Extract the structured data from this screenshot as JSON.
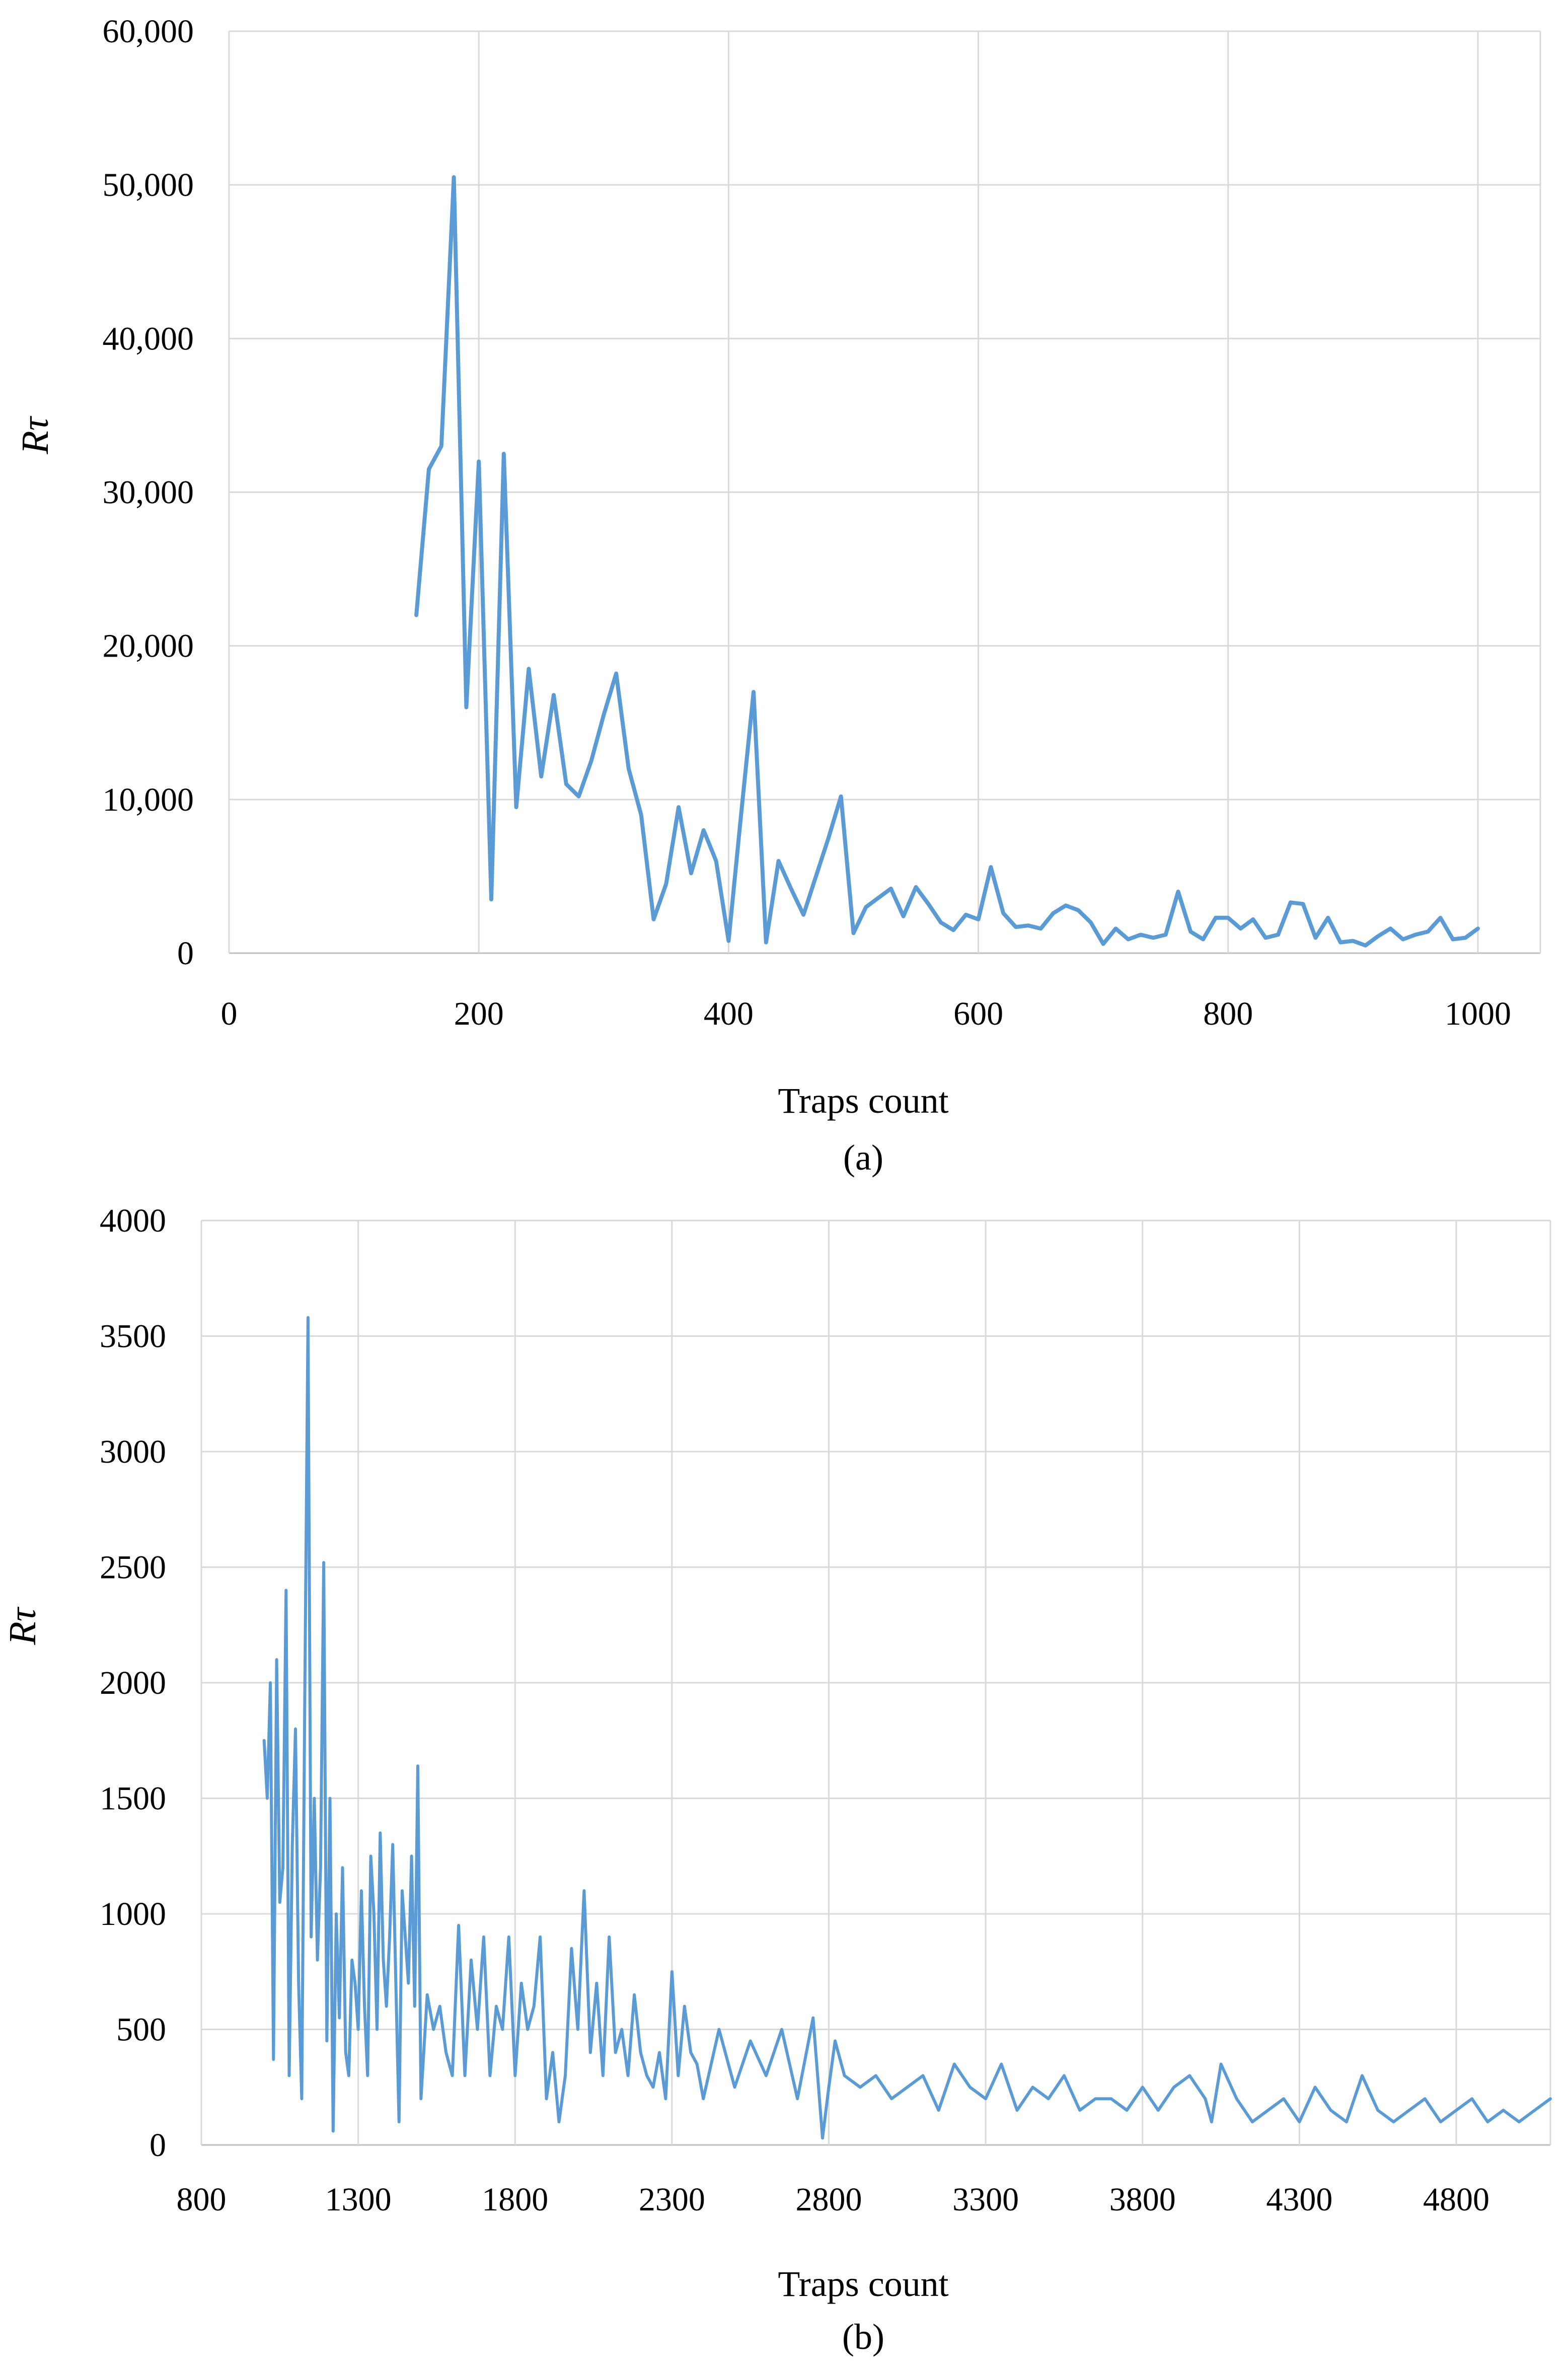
{
  "colors": {
    "series": "#5b9bd5",
    "grid": "#d9d9d9",
    "axis": "#bfbfbf"
  },
  "chart_data": [
    {
      "type": "line",
      "caption": "(a)",
      "xlabel": "Traps count",
      "ylabel": "Rτ",
      "xlim": [
        0,
        1050
      ],
      "ylim": [
        0,
        60000
      ],
      "xticks": [
        0,
        200,
        400,
        600,
        800,
        1000
      ],
      "xtick_labels": [
        "0",
        "200",
        "400",
        "600",
        "800",
        "1000"
      ],
      "yticks": [
        0,
        10000,
        20000,
        30000,
        40000,
        50000,
        60000
      ],
      "ytick_labels": [
        "0",
        "10,000",
        "20,000",
        "30,000",
        "40,000",
        "50,000",
        "60,000"
      ],
      "grid": true,
      "series": [
        {
          "x": [
            150,
            160,
            170,
            180,
            190,
            200,
            210,
            220,
            230,
            240,
            250,
            260,
            270,
            280,
            290,
            300,
            310,
            320,
            330,
            340,
            350,
            360,
            370,
            380,
            390,
            400,
            410,
            420,
            430,
            440,
            450,
            460,
            470,
            480,
            490,
            500,
            510,
            520,
            530,
            540,
            550,
            560,
            570,
            580,
            590,
            600,
            610,
            620,
            630,
            640,
            650,
            660,
            670,
            680,
            690,
            700,
            710,
            720,
            730,
            740,
            750,
            760,
            770,
            780,
            790,
            800,
            810,
            820,
            830,
            840,
            850,
            860,
            870,
            880,
            890,
            900,
            910,
            920,
            930,
            940,
            950,
            960,
            970,
            980,
            990,
            1000
          ],
          "y": [
            22000,
            31500,
            33000,
            50500,
            16000,
            32000,
            3500,
            32500,
            9500,
            18500,
            11500,
            16800,
            11000,
            10200,
            12500,
            15500,
            18200,
            12000,
            9000,
            2200,
            4500,
            9500,
            5200,
            8000,
            6000,
            800,
            9000,
            17000,
            700,
            6000,
            4200,
            2500,
            5000,
            7500,
            10200,
            1300,
            3000,
            3600,
            4200,
            2400,
            4300,
            3200,
            2000,
            1500,
            2500,
            2200,
            5600,
            2600,
            1700,
            1800,
            1600,
            2600,
            3100,
            2800,
            2000,
            600,
            1600,
            900,
            1200,
            1000,
            1200,
            4000,
            1400,
            900,
            2300,
            2300,
            1600,
            2200,
            1000,
            1200,
            3300,
            3200,
            1000,
            2300,
            700,
            800,
            500,
            1100,
            1600,
            900,
            1200,
            1400,
            2300,
            900,
            1000,
            1600
          ]
        }
      ]
    },
    {
      "type": "line",
      "caption": "(b)",
      "xlabel": "Traps count",
      "ylabel": "Rτ",
      "xlim": [
        800,
        5100
      ],
      "ylim": [
        0,
        4000
      ],
      "xticks": [
        800,
        1300,
        1800,
        2300,
        2800,
        3300,
        3800,
        4300,
        4800
      ],
      "xtick_labels": [
        "800",
        "1300",
        "1800",
        "2300",
        "2800",
        "3300",
        "3800",
        "4300",
        "4800"
      ],
      "yticks": [
        0,
        500,
        1000,
        1500,
        2000,
        2500,
        3000,
        3500,
        4000
      ],
      "ytick_labels": [
        "0",
        "500",
        "1000",
        "1500",
        "2000",
        "2500",
        "3000",
        "3500",
        "4000"
      ],
      "grid": true,
      "series": [
        {
          "x": [
            1000,
            1010,
            1020,
            1030,
            1040,
            1050,
            1060,
            1070,
            1080,
            1090,
            1100,
            1110,
            1120,
            1130,
            1140,
            1150,
            1160,
            1170,
            1180,
            1190,
            1200,
            1210,
            1220,
            1230,
            1240,
            1250,
            1260,
            1270,
            1280,
            1290,
            1300,
            1310,
            1320,
            1330,
            1340,
            1350,
            1360,
            1370,
            1380,
            1390,
            1400,
            1410,
            1420,
            1430,
            1440,
            1450,
            1460,
            1470,
            1480,
            1490,
            1500,
            1520,
            1540,
            1560,
            1580,
            1600,
            1620,
            1640,
            1660,
            1680,
            1700,
            1720,
            1740,
            1760,
            1780,
            1800,
            1820,
            1840,
            1860,
            1880,
            1900,
            1920,
            1940,
            1960,
            1980,
            2000,
            2020,
            2040,
            2060,
            2080,
            2100,
            2120,
            2140,
            2160,
            2180,
            2200,
            2220,
            2240,
            2260,
            2280,
            2300,
            2320,
            2340,
            2360,
            2380,
            2400,
            2450,
            2500,
            2550,
            2600,
            2650,
            2700,
            2750,
            2780,
            2800,
            2820,
            2850,
            2900,
            2950,
            3000,
            3050,
            3100,
            3150,
            3200,
            3250,
            3300,
            3350,
            3400,
            3450,
            3500,
            3550,
            3600,
            3650,
            3700,
            3750,
            3800,
            3850,
            3900,
            3950,
            4000,
            4020,
            4050,
            4100,
            4150,
            4200,
            4250,
            4300,
            4350,
            4400,
            4450,
            4500,
            4550,
            4600,
            4650,
            4700,
            4750,
            4800,
            4850,
            4900,
            4950,
            5000,
            5050,
            5100
          ],
          "y": [
            1750,
            1500,
            2000,
            370,
            2100,
            1050,
            1200,
            2400,
            300,
            1300,
            1800,
            700,
            200,
            2000,
            3580,
            900,
            1500,
            800,
            1200,
            2520,
            450,
            1500,
            60,
            1000,
            550,
            1200,
            400,
            300,
            800,
            700,
            500,
            1100,
            600,
            300,
            1250,
            1000,
            500,
            1350,
            800,
            600,
            900,
            1300,
            700,
            100,
            1100,
            900,
            700,
            1250,
            600,
            1640,
            200,
            650,
            500,
            600,
            400,
            300,
            950,
            300,
            800,
            500,
            900,
            300,
            600,
            500,
            900,
            300,
            700,
            500,
            600,
            900,
            200,
            400,
            100,
            300,
            850,
            500,
            1100,
            400,
            700,
            300,
            900,
            400,
            500,
            300,
            650,
            400,
            300,
            250,
            400,
            200,
            750,
            300,
            600,
            400,
            350,
            200,
            500,
            250,
            450,
            300,
            500,
            200,
            550,
            30,
            250,
            450,
            300,
            250,
            300,
            200,
            250,
            300,
            150,
            350,
            250,
            200,
            350,
            150,
            250,
            200,
            300,
            150,
            200,
            200,
            150,
            250,
            150,
            250,
            300,
            200,
            100,
            350,
            200,
            100,
            150,
            200,
            100,
            250,
            150,
            100,
            300,
            150,
            100,
            150,
            200,
            100,
            150,
            200,
            100,
            150,
            100,
            150,
            200
          ]
        }
      ]
    }
  ]
}
